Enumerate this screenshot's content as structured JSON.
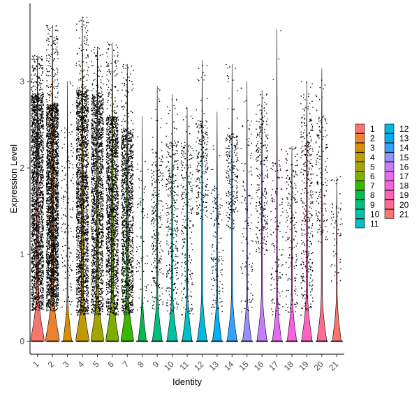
{
  "chart_data": {
    "type": "violin",
    "xlabel": "Identity",
    "ylabel": "Expression Level",
    "ylim": [
      -0.15,
      3.9
    ],
    "yticks": [
      0,
      1,
      2,
      3
    ],
    "grid": false,
    "legend_position": "right",
    "categories": [
      "1",
      "2",
      "3",
      "4",
      "5",
      "6",
      "7",
      "8",
      "9",
      "10",
      "11",
      "12",
      "13",
      "14",
      "15",
      "16",
      "17",
      "18",
      "19",
      "20",
      "21"
    ],
    "colors": [
      "#F8766D",
      "#EA8331",
      "#D89000",
      "#C09B00",
      "#A3A500",
      "#7CAE00",
      "#39B600",
      "#00BB4E",
      "#00BF7D",
      "#00C1A3",
      "#00BFC4",
      "#00BAE0",
      "#00B0F6",
      "#35A2FF",
      "#9590FF",
      "#C77CFF",
      "#E76BF3",
      "#FA62DB",
      "#FF62BC",
      "#FF6C91",
      "#F8766D"
    ],
    "series": [
      {
        "name": "1",
        "max": 3.3,
        "upper": 2.85,
        "lower": 0.35,
        "density": 0.95,
        "points": 2200
      },
      {
        "name": "2",
        "max": 3.65,
        "upper": 2.75,
        "lower": 0.35,
        "density": 1.0,
        "points": 2600
      },
      {
        "name": "3",
        "max": 3.0,
        "upper": 2.5,
        "lower": 0.3,
        "density": 0.1,
        "points": 140
      },
      {
        "name": "4",
        "max": 3.75,
        "upper": 2.9,
        "lower": 0.3,
        "density": 0.9,
        "points": 1900
      },
      {
        "name": "5",
        "max": 3.4,
        "upper": 2.85,
        "lower": 0.3,
        "density": 0.85,
        "points": 1700
      },
      {
        "name": "6",
        "max": 3.45,
        "upper": 2.6,
        "lower": 0.3,
        "density": 0.85,
        "points": 1600
      },
      {
        "name": "7",
        "max": 3.2,
        "upper": 2.45,
        "lower": 0.3,
        "density": 0.8,
        "points": 1300
      },
      {
        "name": "8",
        "max": 2.6,
        "upper": 2.0,
        "lower": 0.3,
        "density": 0.05,
        "points": 70
      },
      {
        "name": "9",
        "max": 2.95,
        "upper": 2.2,
        "lower": 0.35,
        "density": 0.3,
        "points": 260
      },
      {
        "name": "10",
        "max": 2.85,
        "upper": 2.3,
        "lower": 0.3,
        "density": 0.4,
        "points": 330
      },
      {
        "name": "11",
        "max": 2.7,
        "upper": 2.3,
        "lower": 0.3,
        "density": 0.3,
        "points": 240
      },
      {
        "name": "12",
        "max": 3.25,
        "upper": 2.55,
        "lower": 1.4,
        "density": 0.3,
        "points": 220
      },
      {
        "name": "13",
        "max": 2.65,
        "upper": 1.8,
        "lower": 0.3,
        "density": 0.2,
        "points": 150
      },
      {
        "name": "14",
        "max": 3.2,
        "upper": 2.4,
        "lower": 1.3,
        "density": 0.3,
        "points": 230
      },
      {
        "name": "15",
        "max": 3.0,
        "upper": 2.6,
        "lower": 0.3,
        "density": 0.15,
        "points": 110
      },
      {
        "name": "16",
        "max": 2.9,
        "upper": 2.7,
        "lower": 1.0,
        "density": 0.35,
        "points": 260
      },
      {
        "name": "17",
        "max": 3.6,
        "upper": 2.1,
        "lower": 0.3,
        "density": 0.2,
        "points": 140
      },
      {
        "name": "18",
        "max": 2.25,
        "upper": 2.1,
        "lower": 0.3,
        "density": 0.25,
        "points": 180
      },
      {
        "name": "19",
        "max": 3.0,
        "upper": 2.6,
        "lower": 0.3,
        "density": 0.45,
        "points": 360
      },
      {
        "name": "20",
        "max": 3.15,
        "upper": 2.6,
        "lower": 1.1,
        "density": 0.3,
        "points": 150
      },
      {
        "name": "21",
        "max": 1.9,
        "upper": 1.9,
        "lower": 0.6,
        "density": 0.15,
        "points": 60
      }
    ]
  }
}
